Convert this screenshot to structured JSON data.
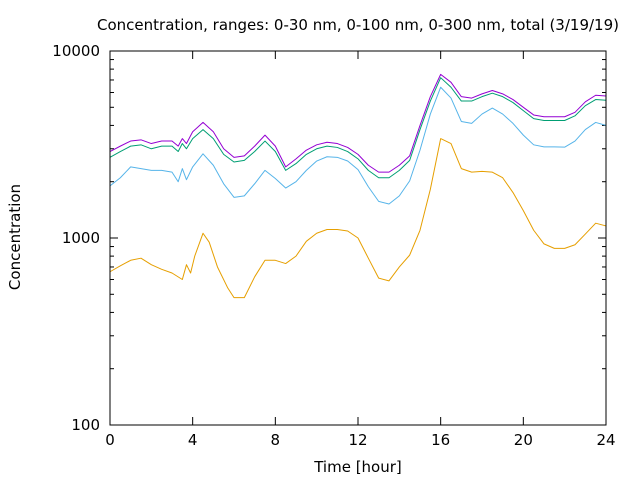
{
  "chart_data": {
    "type": "line",
    "title": "Concentration, ranges: 0-30 nm, 0-100 nm, 0-300 nm, total (3/19/19)",
    "xlabel": "Time [hour]",
    "ylabel": "Concentration",
    "xlim": [
      0,
      24
    ],
    "ylim": [
      100,
      10000
    ],
    "yscale": "log",
    "grid": false,
    "x_ticks": [
      0,
      4,
      8,
      12,
      16,
      20,
      24
    ],
    "x_tick_labels": [
      "0",
      "4",
      "8",
      "12",
      "16",
      "20",
      "24"
    ],
    "y_ticks": [
      100,
      1000,
      10000
    ],
    "y_tick_labels": [
      "100",
      "1000",
      "10000"
    ],
    "series": [
      {
        "color": "#e69f00",
        "points": [
          [
            0,
            660
          ],
          [
            0.5,
            710
          ],
          [
            1,
            760
          ],
          [
            1.5,
            780
          ],
          [
            2,
            720
          ],
          [
            2.5,
            680
          ],
          [
            3,
            650
          ],
          [
            3.5,
            600
          ],
          [
            3.7,
            720
          ],
          [
            3.9,
            650
          ],
          [
            4.1,
            800
          ],
          [
            4.5,
            1060
          ],
          [
            4.8,
            950
          ],
          [
            5.2,
            700
          ],
          [
            5.7,
            540
          ],
          [
            6,
            480
          ],
          [
            6.5,
            480
          ],
          [
            7,
            620
          ],
          [
            7.5,
            760
          ],
          [
            8,
            760
          ],
          [
            8.5,
            730
          ],
          [
            9,
            800
          ],
          [
            9.5,
            960
          ],
          [
            10,
            1060
          ],
          [
            10.5,
            1110
          ],
          [
            11,
            1110
          ],
          [
            11.5,
            1090
          ],
          [
            12,
            1000
          ],
          [
            12.5,
            780
          ],
          [
            13,
            610
          ],
          [
            13.5,
            590
          ],
          [
            14,
            700
          ],
          [
            14.5,
            810
          ],
          [
            15,
            1100
          ],
          [
            15.5,
            1820
          ],
          [
            16,
            3400
          ],
          [
            16.5,
            3200
          ],
          [
            17,
            2350
          ],
          [
            17.5,
            2250
          ],
          [
            18,
            2270
          ],
          [
            18.5,
            2250
          ],
          [
            19,
            2100
          ],
          [
            19.5,
            1750
          ],
          [
            20,
            1400
          ],
          [
            20.5,
            1100
          ],
          [
            21,
            930
          ],
          [
            21.5,
            880
          ],
          [
            22,
            880
          ],
          [
            22.5,
            920
          ],
          [
            23,
            1050
          ],
          [
            23.5,
            1200
          ],
          [
            24,
            1160
          ]
        ]
      },
      {
        "color": "#56b4e9",
        "points": [
          [
            0,
            1900
          ],
          [
            0.5,
            2100
          ],
          [
            1,
            2400
          ],
          [
            1.5,
            2350
          ],
          [
            2,
            2300
          ],
          [
            2.5,
            2300
          ],
          [
            3,
            2250
          ],
          [
            3.3,
            2000
          ],
          [
            3.5,
            2350
          ],
          [
            3.7,
            2050
          ],
          [
            4,
            2400
          ],
          [
            4.5,
            2820
          ],
          [
            5,
            2450
          ],
          [
            5.5,
            1950
          ],
          [
            6,
            1650
          ],
          [
            6.5,
            1680
          ],
          [
            7,
            1950
          ],
          [
            7.5,
            2300
          ],
          [
            8,
            2080
          ],
          [
            8.5,
            1850
          ],
          [
            9,
            2000
          ],
          [
            9.5,
            2300
          ],
          [
            10,
            2580
          ],
          [
            10.5,
            2720
          ],
          [
            11,
            2700
          ],
          [
            11.5,
            2580
          ],
          [
            12,
            2320
          ],
          [
            12.5,
            1880
          ],
          [
            13,
            1570
          ],
          [
            13.5,
            1520
          ],
          [
            14,
            1680
          ],
          [
            14.5,
            2020
          ],
          [
            15,
            2950
          ],
          [
            15.5,
            4600
          ],
          [
            16,
            6400
          ],
          [
            16.5,
            5600
          ],
          [
            17,
            4200
          ],
          [
            17.5,
            4100
          ],
          [
            18,
            4600
          ],
          [
            18.5,
            4950
          ],
          [
            19,
            4600
          ],
          [
            19.5,
            4100
          ],
          [
            20,
            3550
          ],
          [
            20.5,
            3150
          ],
          [
            21,
            3070
          ],
          [
            21.5,
            3070
          ],
          [
            22,
            3060
          ],
          [
            22.5,
            3300
          ],
          [
            23,
            3800
          ],
          [
            23.5,
            4150
          ],
          [
            24,
            4000
          ]
        ]
      },
      {
        "color": "#009e73",
        "points": [
          [
            0,
            2700
          ],
          [
            0.5,
            2900
          ],
          [
            1,
            3100
          ],
          [
            1.5,
            3150
          ],
          [
            2,
            3000
          ],
          [
            2.5,
            3100
          ],
          [
            3,
            3100
          ],
          [
            3.3,
            2900
          ],
          [
            3.5,
            3200
          ],
          [
            3.7,
            3000
          ],
          [
            4,
            3400
          ],
          [
            4.5,
            3800
          ],
          [
            5,
            3400
          ],
          [
            5.5,
            2800
          ],
          [
            6,
            2550
          ],
          [
            6.5,
            2600
          ],
          [
            7,
            2900
          ],
          [
            7.5,
            3300
          ],
          [
            8,
            2900
          ],
          [
            8.5,
            2300
          ],
          [
            9,
            2500
          ],
          [
            9.5,
            2800
          ],
          [
            10,
            3000
          ],
          [
            10.5,
            3100
          ],
          [
            11,
            3050
          ],
          [
            11.5,
            2900
          ],
          [
            12,
            2650
          ],
          [
            12.5,
            2300
          ],
          [
            13,
            2100
          ],
          [
            13.5,
            2100
          ],
          [
            14,
            2300
          ],
          [
            14.5,
            2600
          ],
          [
            15,
            3800
          ],
          [
            15.5,
            5400
          ],
          [
            16,
            7200
          ],
          [
            16.5,
            6400
          ],
          [
            17,
            5400
          ],
          [
            17.5,
            5400
          ],
          [
            18,
            5700
          ],
          [
            18.5,
            5950
          ],
          [
            19,
            5700
          ],
          [
            19.5,
            5300
          ],
          [
            20,
            4800
          ],
          [
            20.5,
            4350
          ],
          [
            21,
            4250
          ],
          [
            21.5,
            4250
          ],
          [
            22,
            4250
          ],
          [
            22.5,
            4500
          ],
          [
            23,
            5100
          ],
          [
            23.5,
            5500
          ],
          [
            24,
            5450
          ]
        ]
      },
      {
        "color": "#9400d3",
        "points": [
          [
            0,
            2900
          ],
          [
            0.5,
            3100
          ],
          [
            1,
            3300
          ],
          [
            1.5,
            3350
          ],
          [
            2,
            3200
          ],
          [
            2.5,
            3300
          ],
          [
            3,
            3300
          ],
          [
            3.3,
            3100
          ],
          [
            3.5,
            3400
          ],
          [
            3.7,
            3200
          ],
          [
            4,
            3700
          ],
          [
            4.5,
            4150
          ],
          [
            5,
            3700
          ],
          [
            5.5,
            3000
          ],
          [
            6,
            2700
          ],
          [
            6.5,
            2750
          ],
          [
            7,
            3100
          ],
          [
            7.5,
            3550
          ],
          [
            8,
            3100
          ],
          [
            8.5,
            2400
          ],
          [
            9,
            2650
          ],
          [
            9.5,
            2950
          ],
          [
            10,
            3150
          ],
          [
            10.5,
            3250
          ],
          [
            11,
            3200
          ],
          [
            11.5,
            3050
          ],
          [
            12,
            2800
          ],
          [
            12.5,
            2450
          ],
          [
            13,
            2250
          ],
          [
            13.5,
            2250
          ],
          [
            14,
            2450
          ],
          [
            14.5,
            2750
          ],
          [
            15,
            4000
          ],
          [
            15.5,
            5700
          ],
          [
            16,
            7500
          ],
          [
            16.5,
            6800
          ],
          [
            17,
            5700
          ],
          [
            17.5,
            5600
          ],
          [
            18,
            5900
          ],
          [
            18.5,
            6150
          ],
          [
            19,
            5900
          ],
          [
            19.5,
            5500
          ],
          [
            20,
            5000
          ],
          [
            20.5,
            4550
          ],
          [
            21,
            4450
          ],
          [
            21.5,
            4450
          ],
          [
            22,
            4450
          ],
          [
            22.5,
            4700
          ],
          [
            23,
            5350
          ],
          [
            23.5,
            5800
          ],
          [
            24,
            5750
          ]
        ]
      }
    ]
  }
}
